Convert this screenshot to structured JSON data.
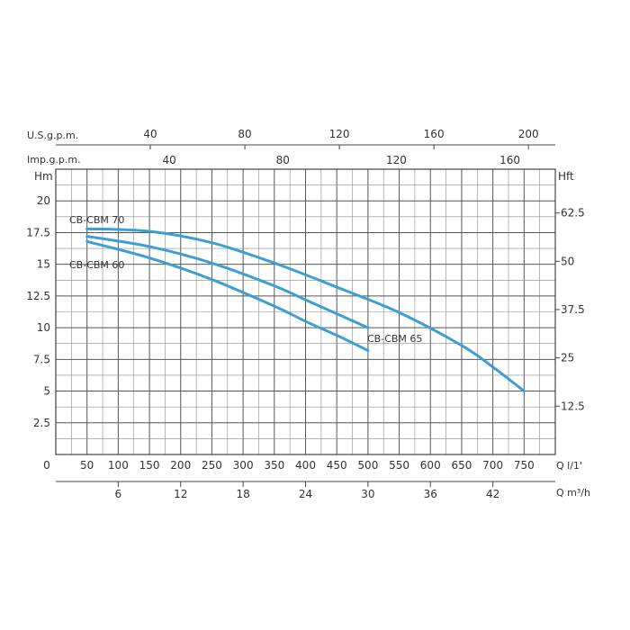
{
  "chart_data": {
    "type": "line",
    "x_unit_label": "Q l/1'",
    "x_secondary_unit_label": "Q m³/h",
    "top_axis_1_label": "U.S.g.p.m.",
    "top_axis_2_label": "Imp.g.p.m.",
    "ylabel_left": "Hm",
    "ylabel_right": "Hft",
    "xlim": [
      0,
      800
    ],
    "ylim": [
      0,
      22.5
    ],
    "grid": true,
    "x_ticks": [
      0,
      50,
      100,
      150,
      200,
      250,
      300,
      350,
      400,
      450,
      500,
      550,
      600,
      650,
      700,
      750
    ],
    "x_secondary_ticks": [
      6,
      12,
      18,
      24,
      30,
      36,
      42
    ],
    "usgpm_ticks": [
      40,
      80,
      120,
      160,
      200
    ],
    "impgpm_ticks": [
      40,
      80,
      120,
      160
    ],
    "y_ticks": [
      2.5,
      5,
      7.5,
      10,
      12.5,
      15,
      17.5,
      20
    ],
    "y_right_ticks": [
      12.5,
      25,
      37.5,
      50,
      62.5
    ],
    "line_color": "#3b9fd4",
    "series": [
      {
        "name": "CB-CBM 60",
        "x": [
          50,
          150,
          250,
          350,
          400,
          450,
          500
        ],
        "y": [
          16.8,
          15.5,
          13.8,
          11.7,
          10.5,
          9.4,
          8.2
        ]
      },
      {
        "name": "CB-CBM 65",
        "x": [
          50,
          150,
          250,
          350,
          400,
          450,
          500
        ],
        "y": [
          17.2,
          16.4,
          15.1,
          13.3,
          12.2,
          11.1,
          10.0
        ]
      },
      {
        "name": "CB-CBM 70",
        "x": [
          50,
          150,
          250,
          350,
          450,
          550,
          650,
          700,
          750
        ],
        "y": [
          17.8,
          17.6,
          16.7,
          15.1,
          13.2,
          11.2,
          8.6,
          6.9,
          5.0
        ]
      }
    ]
  }
}
